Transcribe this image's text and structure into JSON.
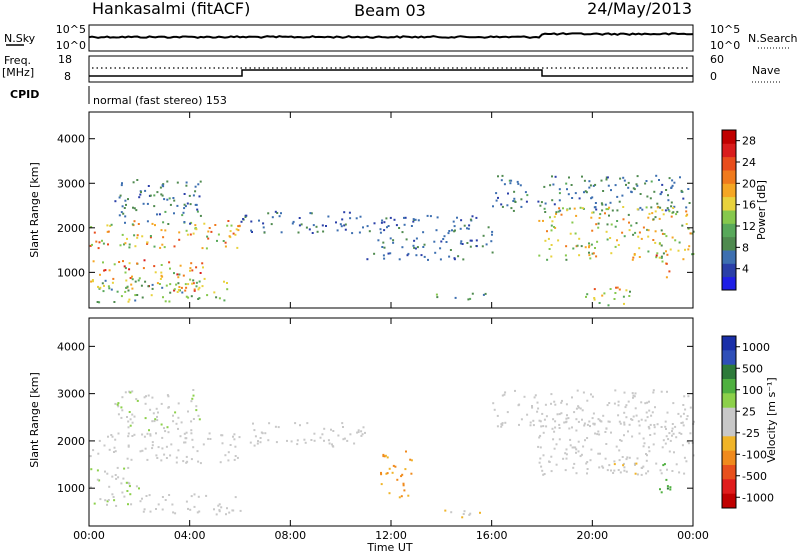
{
  "header": {
    "station": "Hankasalmi (fitACF)",
    "beam": "Beam 03",
    "date": "24/May/2013"
  },
  "status_panels": {
    "nsky_label": "N.Sky",
    "nsearch_label": "N.Search",
    "noise_ticks_top": "10^5",
    "noise_ticks_bottom": "10^0",
    "noise_ticks_right_top": "10^5",
    "noise_ticks_right_bottom": "10^0",
    "freq_label_line1": "Freq.",
    "freq_label_line2": "[MHz]",
    "freq_ticks": [
      "18",
      "8"
    ],
    "nave_label": "Nave",
    "nave_ticks": [
      "60",
      "0"
    ],
    "cpid_label": "CPID",
    "cpid_text": "normal (fast stereo) 153"
  },
  "x_axis": {
    "label": "Time UT",
    "ticks": [
      "00:00",
      "04:00",
      "08:00",
      "12:00",
      "16:00",
      "20:00",
      "00:00"
    ]
  },
  "colors": {
    "power": [
      "#1f1fe6",
      "#2a3fa8",
      "#3d6fb0",
      "#4f8a4f",
      "#58a85a",
      "#86c84d",
      "#e8d23c",
      "#f5a623",
      "#f07a1c",
      "#e84d1c",
      "#d91c1c",
      "#c00000"
    ],
    "velocity": [
      "#1a2fa8",
      "#2f4fb8",
      "#2d7a3a",
      "#4fb040",
      "#8cd04a",
      "#c8c8c8",
      "#c8c8c8",
      "#f0b428",
      "#f08a1c",
      "#e8501c",
      "#e01c1c",
      "#c00000"
    ]
  },
  "chart_data": [
    {
      "type": "heatmap",
      "name": "power",
      "xlabel": "",
      "ylabel": "Slant Range [km]",
      "y_ticks": [
        "1000",
        "2000",
        "3000",
        "4000"
      ],
      "ylim": [
        200,
        4600
      ],
      "x_range_hours": [
        0,
        24
      ],
      "colorbar_label": "Power [dB]",
      "colorbar_ticks": [
        "4",
        "8",
        "12",
        "16",
        "20",
        "24",
        "28"
      ],
      "colorbar_range": [
        0,
        30
      ],
      "bands": [
        {
          "t0": 0.0,
          "t1": 6.0,
          "r0": 1550,
          "r1": 2200,
          "vmax": 26
        },
        {
          "t0": 0.0,
          "t1": 4.5,
          "r0": 600,
          "r1": 1300,
          "vmax": 28
        },
        {
          "t0": 0.3,
          "t1": 5.8,
          "r0": 350,
          "r1": 900,
          "vmax": 18
        },
        {
          "t0": 1.0,
          "t1": 4.5,
          "r0": 2100,
          "r1": 3100,
          "vmax": 10
        },
        {
          "t0": 6.0,
          "t1": 11.0,
          "r0": 1900,
          "r1": 2400,
          "vmax": 8
        },
        {
          "t0": 11.0,
          "t1": 16.0,
          "r0": 1300,
          "r1": 2300,
          "vmax": 8
        },
        {
          "t0": 13.5,
          "t1": 15.8,
          "r0": 400,
          "r1": 550,
          "vmax": 14
        },
        {
          "t0": 16.0,
          "t1": 24.0,
          "r0": 2400,
          "r1": 3200,
          "vmax": 10
        },
        {
          "t0": 17.8,
          "t1": 24.0,
          "r0": 1300,
          "r1": 2500,
          "vmax": 22
        },
        {
          "t0": 19.5,
          "t1": 21.5,
          "r0": 250,
          "r1": 700,
          "vmax": 24
        },
        {
          "t0": 22.5,
          "t1": 23.1,
          "r0": 900,
          "r1": 1600,
          "vmax": 28
        }
      ]
    },
    {
      "type": "heatmap",
      "name": "velocity",
      "xlabel": "Time UT",
      "ylabel": "Slant Range [km]",
      "y_ticks": [
        "1000",
        "2000",
        "3000",
        "4000"
      ],
      "ylim": [
        200,
        4600
      ],
      "x_range_hours": [
        0,
        24
      ],
      "colorbar_label": "Velocity [m s^-1]",
      "colorbar_ticks": [
        "1000",
        "500",
        "100",
        "25",
        "-25",
        "-100",
        "-500",
        "-1000"
      ],
      "colorbar_range": [
        -1000,
        1000
      ],
      "bands": [
        {
          "t0": 0.0,
          "t1": 6.0,
          "r0": 1550,
          "r1": 2200,
          "v": 0
        },
        {
          "t0": 0.0,
          "t1": 2.0,
          "r0": 600,
          "r1": 1500,
          "v": 150
        },
        {
          "t0": 2.0,
          "t1": 6.0,
          "r0": 450,
          "r1": 900,
          "v": 0
        },
        {
          "t0": 1.0,
          "t1": 4.5,
          "r0": 2200,
          "r1": 3100,
          "v": 120
        },
        {
          "t0": 6.0,
          "t1": 11.0,
          "r0": 1900,
          "r1": 2400,
          "v": 0
        },
        {
          "t0": 11.5,
          "t1": 12.8,
          "r0": 800,
          "r1": 1800,
          "v": -400
        },
        {
          "t0": 13.5,
          "t1": 15.8,
          "r0": 400,
          "r1": 550,
          "v": -150
        },
        {
          "t0": 16.0,
          "t1": 24.0,
          "r0": 2300,
          "r1": 3100,
          "v": 0
        },
        {
          "t0": 17.8,
          "t1": 24.0,
          "r0": 1300,
          "r1": 2500,
          "v": 0
        },
        {
          "t0": 20.5,
          "t1": 22.0,
          "r0": 1300,
          "r1": 1700,
          "v": -150
        },
        {
          "t0": 22.5,
          "t1": 23.1,
          "r0": 900,
          "r1": 1600,
          "v": 500
        }
      ]
    }
  ]
}
